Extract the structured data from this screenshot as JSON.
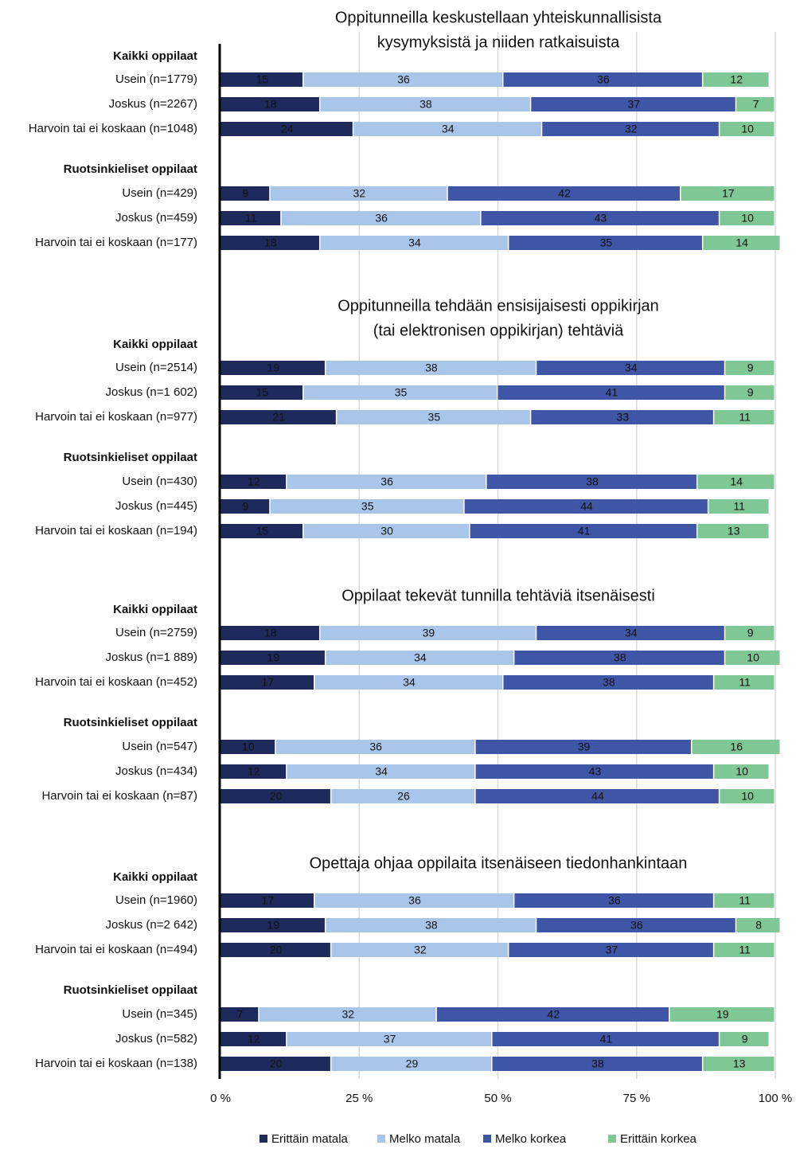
{
  "chart_data": {
    "type": "bar",
    "orientation": "horizontal",
    "stacked": true,
    "xlim": [
      0,
      100
    ],
    "xticks": [
      {
        "value": 0,
        "label": "0 %"
      },
      {
        "value": 25,
        "label": "25 %"
      },
      {
        "value": 50,
        "label": "50 %"
      },
      {
        "value": 75,
        "label": "75 %"
      },
      {
        "value": 100,
        "label": "100 %"
      }
    ],
    "grid": true,
    "legend": "bottom",
    "series": [
      {
        "name": "Erittäin matala",
        "color": "#1f2a5c"
      },
      {
        "name": "Melko matala",
        "color": "#a9c5e9"
      },
      {
        "name": "Melko korkea",
        "color": "#3f55a5"
      },
      {
        "name": "Erittäin korkea",
        "color": "#7fc794"
      }
    ],
    "panels": [
      {
        "title": [
          "Oppitunneilla keskustellaan yhteiskunnallisista",
          "kysymyksistä ja niiden ratkaisuista"
        ],
        "groups": [
          "Kaikki oppilaat",
          "Ruotsinkieliset oppilaat"
        ],
        "categories": [
          "Usein (n=1779)",
          "Joskus (n=2267)",
          "Harvoin tai ei koskaan (n=1048)",
          "Usein (n=429)",
          "Joskus (n=459)",
          "Harvoin tai ei koskaan (n=177)"
        ],
        "values": [
          [
            15,
            36,
            36,
            12
          ],
          [
            18,
            38,
            37,
            7
          ],
          [
            24,
            34,
            32,
            10
          ],
          [
            9,
            32,
            42,
            17
          ],
          [
            11,
            36,
            43,
            10
          ],
          [
            18,
            34,
            35,
            14
          ]
        ]
      },
      {
        "title": [
          "Oppitunneilla tehdään ensisijaisesti oppikirjan",
          "(tai elektronisen oppikirjan) tehtäviä"
        ],
        "groups": [
          "Kaikki oppilaat",
          "Ruotsinkieliset oppilaat"
        ],
        "categories": [
          "Usein (n=2514)",
          "Joskus (n=1 602)",
          "Harvoin tai ei koskaan (n=977)",
          "Usein (n=430)",
          "Joskus (n=445)",
          "Harvoin tai ei koskaan (n=194)"
        ],
        "values": [
          [
            19,
            38,
            34,
            9
          ],
          [
            15,
            35,
            41,
            9
          ],
          [
            21,
            35,
            33,
            11
          ],
          [
            12,
            36,
            38,
            14
          ],
          [
            9,
            35,
            44,
            11
          ],
          [
            15,
            30,
            41,
            13
          ]
        ]
      },
      {
        "title": [
          "Oppilaat tekevät tunnilla tehtäviä itsenäisesti"
        ],
        "groups": [
          "Kaikki oppilaat",
          "Ruotsinkieliset oppilaat"
        ],
        "categories": [
          "Usein (n=2759)",
          "Joskus (n=1 889)",
          "Harvoin tai ei koskaan (n=452)",
          "Usein (n=547)",
          "Joskus (n=434)",
          "Harvoin tai ei koskaan (n=87)"
        ],
        "values": [
          [
            18,
            39,
            34,
            9
          ],
          [
            19,
            34,
            38,
            10
          ],
          [
            17,
            34,
            38,
            11
          ],
          [
            10,
            36,
            39,
            16
          ],
          [
            12,
            34,
            43,
            10
          ],
          [
            20,
            26,
            44,
            10
          ]
        ]
      },
      {
        "title": [
          "Opettaja ohjaa oppilaita itsenäiseen tiedonhankintaan"
        ],
        "groups": [
          "Kaikki oppilaat",
          "Ruotsinkieliset oppilaat"
        ],
        "categories": [
          "Usein (n=1960)",
          "Joskus (n=2 642)",
          "Harvoin tai ei koskaan (n=494)",
          "Usein (n=345)",
          "Joskus (n=582)",
          "Harvoin tai ei koskaan (n=138)"
        ],
        "values": [
          [
            17,
            36,
            36,
            11
          ],
          [
            19,
            38,
            36,
            8
          ],
          [
            20,
            32,
            37,
            11
          ],
          [
            7,
            32,
            42,
            19
          ],
          [
            12,
            37,
            41,
            9
          ],
          [
            20,
            29,
            38,
            13
          ]
        ]
      }
    ]
  }
}
